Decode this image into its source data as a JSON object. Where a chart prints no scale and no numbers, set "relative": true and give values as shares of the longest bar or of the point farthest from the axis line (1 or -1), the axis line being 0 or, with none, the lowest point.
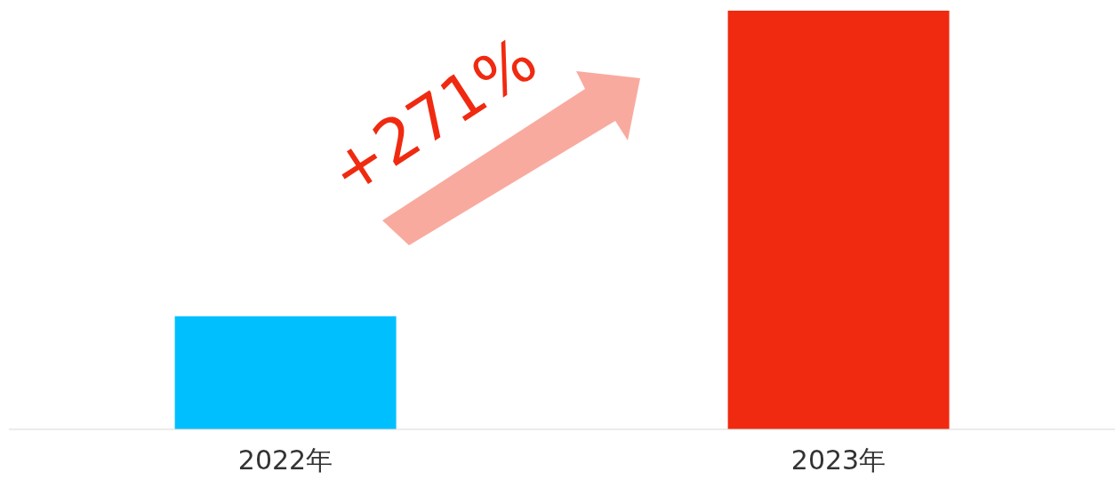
{
  "chart_data": {
    "type": "bar",
    "categories": [
      "2022年",
      "2023年"
    ],
    "values": [
      0.27,
      1
    ],
    "colors": [
      "#00bfff",
      "#f02a10"
    ],
    "relative": true,
    "annotations": [
      "+271%"
    ]
  }
}
